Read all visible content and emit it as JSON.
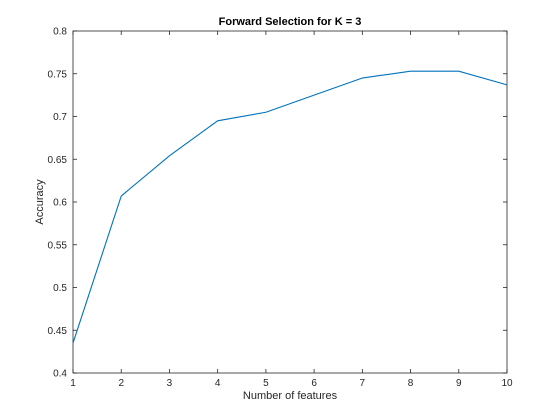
{
  "chart_data": {
    "type": "line",
    "title": "Forward Selection for K = 3",
    "xlabel": "Number of features",
    "ylabel": "Accuracy",
    "xlim": [
      1,
      10
    ],
    "ylim": [
      0.4,
      0.8
    ],
    "xticks": [
      "1",
      "2",
      "3",
      "4",
      "5",
      "6",
      "7",
      "8",
      "9",
      "10"
    ],
    "yticks": [
      "0.4",
      "0.45",
      "0.5",
      "0.55",
      "0.6",
      "0.65",
      "0.7",
      "0.75",
      "0.8"
    ],
    "grid": false,
    "series": [
      {
        "color": "#0072bd",
        "x": [
          1,
          2,
          3,
          4,
          5,
          6,
          7,
          8,
          9,
          10
        ],
        "y": [
          0.435,
          0.607,
          0.654,
          0.695,
          0.705,
          0.725,
          0.745,
          0.753,
          0.753,
          0.737
        ]
      }
    ]
  }
}
